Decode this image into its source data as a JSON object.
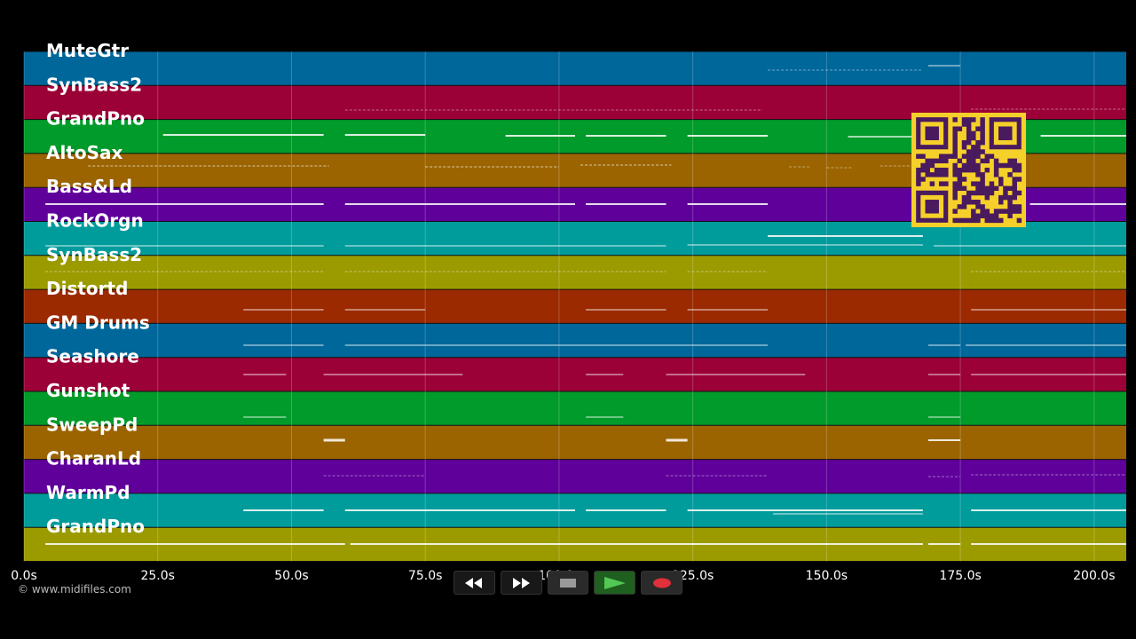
{
  "copyright": "© www.midifiles.com",
  "timeline": {
    "ticks": [
      "0.0s",
      "25.0s",
      "50.0s",
      "75.0s",
      "100.0s",
      "125.0s",
      "150.0s",
      "175.0s",
      "200.0s"
    ],
    "tick_values": [
      0,
      25,
      50,
      75,
      100,
      125,
      150,
      175,
      200
    ],
    "range_seconds": [
      0,
      206
    ]
  },
  "tracks": [
    {
      "name": "MuteGtr",
      "color": "#00679b"
    },
    {
      "name": "SynBass2",
      "color": "#9b0036"
    },
    {
      "name": "GrandPno",
      "color": "#009b2a"
    },
    {
      "name": "AltoSax",
      "color": "#9b6400"
    },
    {
      "name": "Bass&Ld",
      "color": "#5f009b"
    },
    {
      "name": "RockOrgn",
      "color": "#009b9b"
    },
    {
      "name": "SynBass2",
      "color": "#9b9b00"
    },
    {
      "name": "Distortd",
      "color": "#9b2a00"
    },
    {
      "name": "GM Drums",
      "color": "#00679b"
    },
    {
      "name": "Seashore",
      "color": "#9b0036"
    },
    {
      "name": "Gunshot",
      "color": "#009b2a"
    },
    {
      "name": "SweepPd",
      "color": "#9b6400"
    },
    {
      "name": "CharanLd",
      "color": "#5f009b"
    },
    {
      "name": "WarmPd",
      "color": "#009b9b"
    },
    {
      "name": "GrandPno",
      "color": "#9b9b00"
    }
  ],
  "transport": {
    "rewind_icon": "rewind-icon",
    "forward_icon": "fast-forward-icon",
    "stop_icon": "stop-icon",
    "play_icon": "play-icon",
    "record_icon": "record-icon"
  },
  "qr_icon": "qr-code-icon"
}
